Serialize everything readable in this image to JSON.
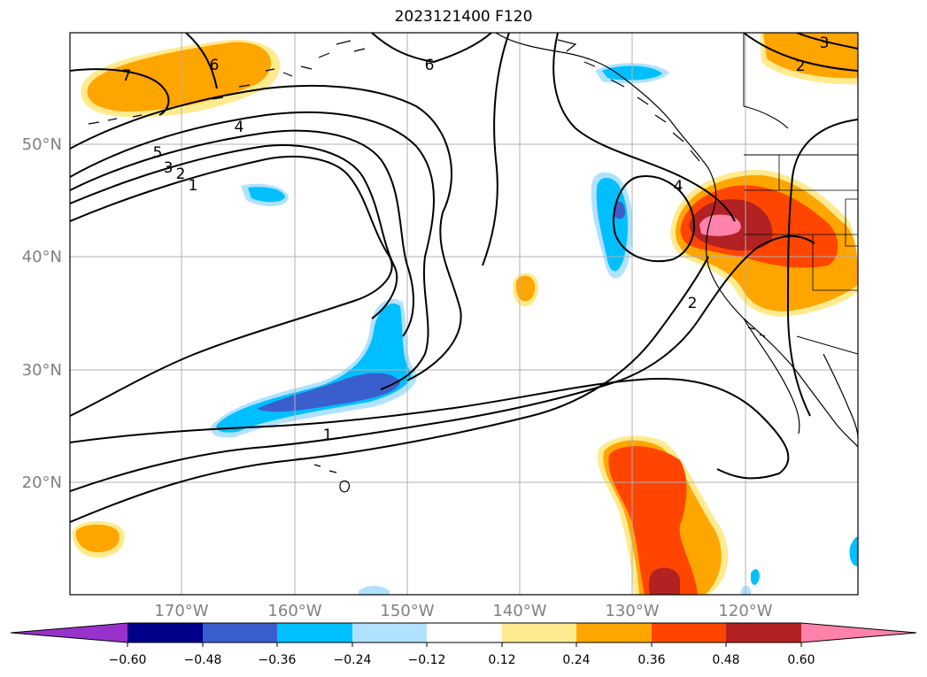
{
  "title": "2023121400 F120",
  "map": {
    "longitude_labels": [
      "170°W",
      "160°W",
      "150°W",
      "140°W",
      "130°W",
      "120°W"
    ],
    "latitude_labels": [
      "50°N",
      "40°N",
      "30°N",
      "20°N"
    ],
    "extent": {
      "lon_min": -180,
      "lon_max": -110,
      "lat_min": 10,
      "lat_max": 60
    },
    "grid": true,
    "contour_labels": [
      "7",
      "6",
      "6",
      "5",
      "4",
      "4",
      "3",
      "3",
      "2",
      "2",
      "2",
      "1",
      "1"
    ]
  },
  "colorbar": {
    "orientation": "horizontal",
    "extend": "both",
    "tick_labels": [
      "−0.60",
      "−0.48",
      "−0.36",
      "−0.24",
      "−0.12",
      "0.12",
      "0.24",
      "0.36",
      "0.48",
      "0.60"
    ],
    "colors": [
      "#9932cc",
      "#00008b",
      "#3a5fcd",
      "#00bfff",
      "#b0e2ff",
      "#ffffff",
      "#ffeb8f",
      "#ffa500",
      "#ff4500",
      "#b22222",
      "#ff82ab"
    ]
  }
}
